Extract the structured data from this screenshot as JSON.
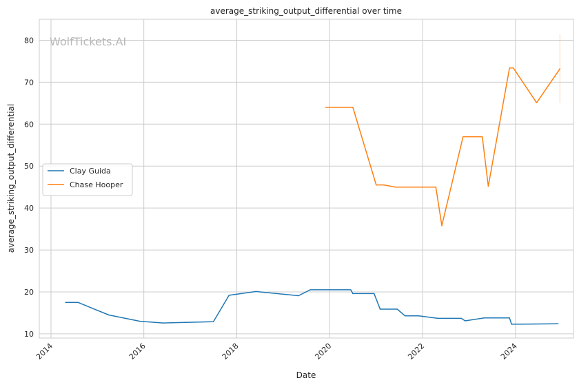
{
  "chart_data": {
    "type": "line",
    "title": "average_striking_output_differential over time",
    "xlabel": "Date",
    "ylabel": "average_striking_output_differential",
    "watermark": "WolfTickets.AI",
    "xlim": [
      "2013-10-01",
      "2025-04-01"
    ],
    "ylim": [
      9,
      85
    ],
    "x_ticks": [
      {
        "date": "2014-01-01",
        "label": "2014"
      },
      {
        "date": "2016-01-01",
        "label": "2016"
      },
      {
        "date": "2018-01-01",
        "label": "2018"
      },
      {
        "date": "2020-01-01",
        "label": "2020"
      },
      {
        "date": "2022-01-01",
        "label": "2022"
      },
      {
        "date": "2024-01-01",
        "label": "2024"
      }
    ],
    "y_ticks": [
      10,
      20,
      30,
      40,
      50,
      60,
      70,
      80
    ],
    "grid": true,
    "legend_position": "center-left",
    "series": [
      {
        "name": "Clay Guida",
        "color": "#1f77b4",
        "points": [
          [
            "2014-04-26",
            17.5
          ],
          [
            "2014-08-01",
            17.5
          ],
          [
            "2015-04-01",
            14.5
          ],
          [
            "2015-12-01",
            13.0
          ],
          [
            "2016-06-01",
            12.6
          ],
          [
            "2017-07-01",
            12.9
          ],
          [
            "2017-11-01",
            19.2
          ],
          [
            "2018-06-01",
            20.1
          ],
          [
            "2019-05-01",
            19.1
          ],
          [
            "2019-08-01",
            20.5
          ],
          [
            "2020-06-15",
            20.5
          ],
          [
            "2020-07-01",
            19.6
          ],
          [
            "2020-12-15",
            19.6
          ],
          [
            "2021-02-01",
            15.9
          ],
          [
            "2021-06-15",
            15.9
          ],
          [
            "2021-08-15",
            14.3
          ],
          [
            "2021-12-01",
            14.3
          ],
          [
            "2022-05-01",
            13.7
          ],
          [
            "2022-11-01",
            13.7
          ],
          [
            "2022-12-01",
            13.1
          ],
          [
            "2023-05-01",
            13.8
          ],
          [
            "2023-11-15",
            13.8
          ],
          [
            "2023-12-01",
            12.3
          ],
          [
            "2024-12-01",
            12.4
          ]
        ]
      },
      {
        "name": "Chase Hooper",
        "color": "#ff7f0e",
        "points": [
          [
            "2019-12-01",
            64.0
          ],
          [
            "2020-07-01",
            64.0
          ],
          [
            "2021-01-01",
            45.5
          ],
          [
            "2021-03-01",
            45.5
          ],
          [
            "2021-06-01",
            45.0
          ],
          [
            "2022-04-15",
            45.0
          ],
          [
            "2022-06-01",
            35.8
          ],
          [
            "2022-11-15",
            57.0
          ],
          [
            "2023-04-15",
            57.0
          ],
          [
            "2023-06-01",
            45.2
          ],
          [
            "2023-11-15",
            73.4
          ],
          [
            "2023-12-15",
            73.4
          ],
          [
            "2024-06-15",
            65.1
          ],
          [
            "2024-12-15",
            73.2
          ]
        ],
        "error_bar": {
          "date": "2024-12-15",
          "low": 65.0,
          "high": 81.5
        }
      }
    ]
  }
}
